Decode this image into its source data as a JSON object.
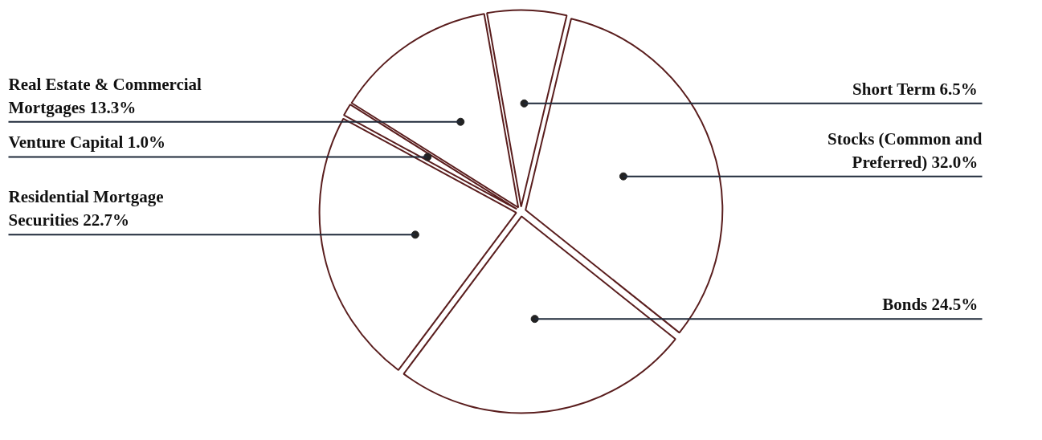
{
  "chart_data": {
    "type": "pie",
    "categories": [
      "Short Term",
      "Stocks (Common and Preferred)",
      "Bonds",
      "Residential Mortgage Securities",
      "Venture Capital",
      "Real Estate & Commercial Mortgages"
    ],
    "values": [
      6.5,
      32.0,
      24.5,
      22.7,
      1.0,
      13.3
    ],
    "value_labels": [
      "6.5%",
      "32.0%",
      "24.5%",
      "22.7%",
      "1.0%",
      "13.3%"
    ],
    "colors": [
      "#ffffff",
      "#ffffff",
      "#ffffff",
      "#ffffff",
      "#ffffff",
      "#ffffff"
    ]
  }
}
